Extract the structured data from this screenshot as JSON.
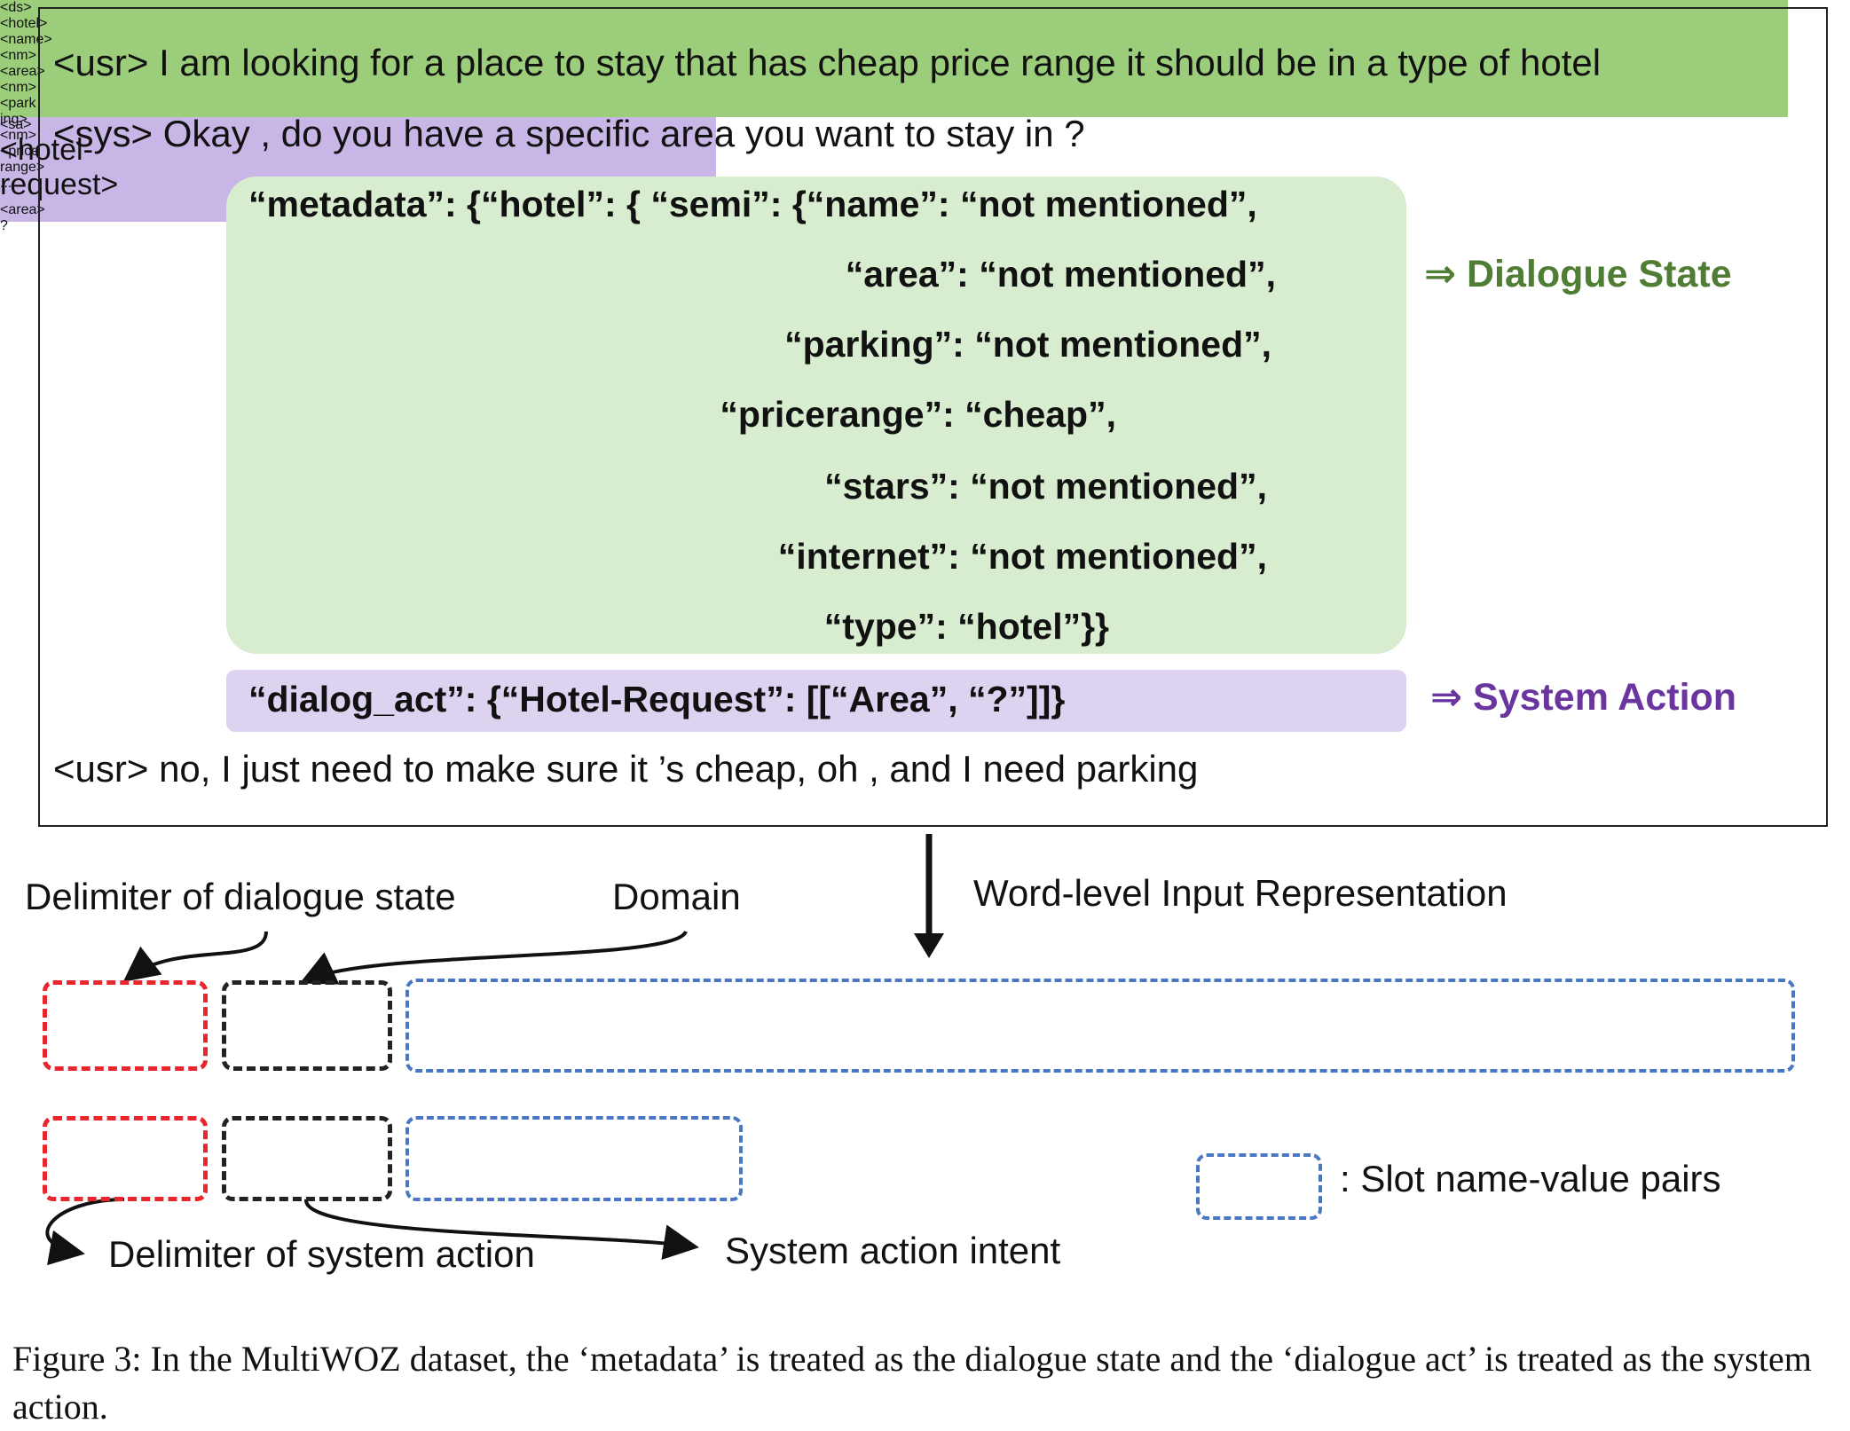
{
  "dialogue": {
    "usr1": "<usr> I am looking for a place to stay that has cheap price range it should be in a type of hotel",
    "sys1": "<sys> Okay , do you have a specific area you want to stay in ?",
    "usr2": "<usr> no, I just need to make sure it ’s cheap, oh , and I need parking"
  },
  "metadata": {
    "line1": "“metadata”: {“hotel”: { “semi”: {“name”: “not mentioned”,",
    "line2": "“area”: “not mentioned”,",
    "line3": "“parking”: “not mentioned”,",
    "line4": "“pricerange”: “cheap”,",
    "line5": "“stars”: “not mentioned”,",
    "line6": "“internet”: “not mentioned”,",
    "line7": "“type”: “hotel”}}"
  },
  "dialog_act": "“dialog_act”: {“Hotel-Request”: [[“Area”, “?”]]}",
  "labels": {
    "dialogue_state": "⇒ Dialogue State",
    "system_action": "⇒ System Action",
    "delimiter_ds": "Delimiter of dialogue state",
    "domain": "Domain",
    "word_level": "Word-level Input Representation",
    "slot_pairs": ": Slot name-value pairs",
    "delimiter_sa": "Delimiter of system action",
    "sa_intent": "System action intent"
  },
  "ds_tokens": [
    "<ds>",
    "<hotel>",
    "<name>",
    "<nm>",
    "<area>",
    "<nm>",
    "<park\ning>",
    "<nm>",
    "<price\nrange>",
    "..."
  ],
  "sa_tokens": [
    "<sa>",
    "<hotel-\nrequest>",
    "<area>",
    "?"
  ],
  "colors": {
    "state_bg": "#d8eccf",
    "act_bg": "#ddd2f0",
    "ds_row": "#9bcd7a",
    "sa_row": "#c8b6e6",
    "ds_label": "#4e7d33",
    "sa_label": "#6b35a0",
    "delimiter_box": "#e8262b",
    "domain_box": "#222222",
    "slot_box": "#4a77c4"
  },
  "caption": "Figure 3: In the MultiWOZ dataset, the ‘metadata’ is treated as the dialogue state and the ‘dialogue act’ is treated as the system action."
}
